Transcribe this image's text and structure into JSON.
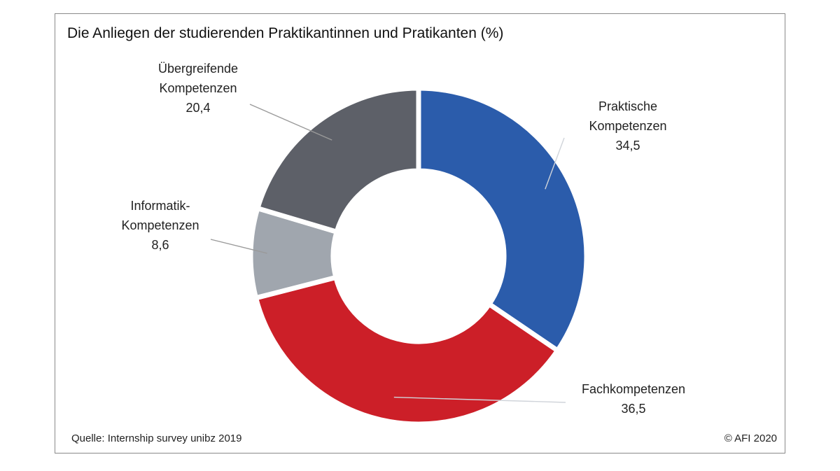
{
  "title": "Die Anliegen der studierenden Praktikantinnen und Pratikanten (%)",
  "source": "Quelle: Internship survey unibz 2019",
  "copyright": "© AFI 2020",
  "chart_data": {
    "type": "pie",
    "variant": "donut",
    "title": "Die Anliegen der studierenden Praktikantinnen und Pratikanten (%)",
    "slices": [
      {
        "label_lines": [
          "Praktische",
          "Kompetenzen"
        ],
        "value": 34.5,
        "value_text": "34,5",
        "color": "#2b5cab"
      },
      {
        "label_lines": [
          "Fachkompetenzen"
        ],
        "value": 36.5,
        "value_text": "36,5",
        "color": "#cc1f28"
      },
      {
        "label_lines": [
          "Informatik-",
          "Kompetenzen"
        ],
        "value": 8.6,
        "value_text": "8,6",
        "color": "#a0a6ae"
      },
      {
        "label_lines": [
          "Übergreifende",
          "Kompetenzen"
        ],
        "value": 20.4,
        "value_text": "20,4",
        "color": "#5d6068"
      }
    ]
  }
}
